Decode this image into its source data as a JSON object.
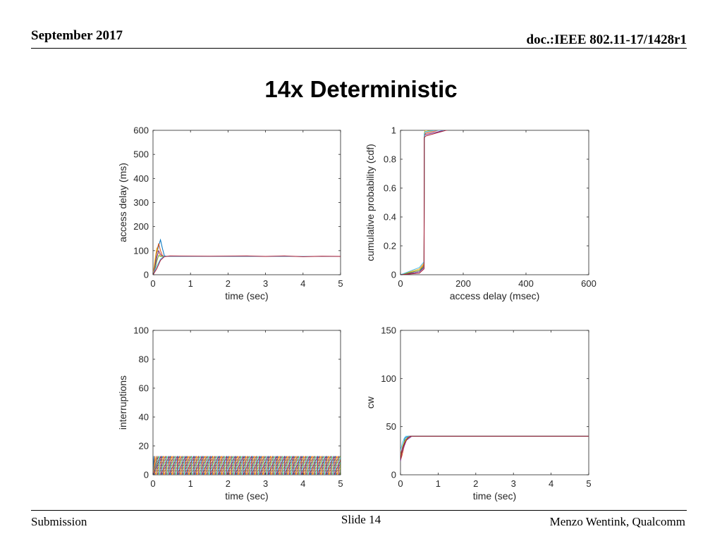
{
  "header": {
    "date": "September 2017",
    "doc": "doc.:IEEE 802.11-17/1428r1"
  },
  "slide_title": "14x Deterministic",
  "footer": {
    "left": "Submission",
    "center": "Slide 14",
    "right": "Menzo Wentink, Qualcomm"
  },
  "series_colors": [
    "#0072bd",
    "#d95319",
    "#edb120",
    "#7e2f8e",
    "#77ac30",
    "#4dbeee",
    "#a2142f"
  ],
  "chart_data": [
    {
      "id": "access-delay",
      "type": "line",
      "xlabel": "time (sec)",
      "ylabel": "access delay (ms)",
      "xlim": [
        0,
        5
      ],
      "ylim": [
        0,
        600
      ],
      "xticks": [
        0,
        1,
        2,
        3,
        4,
        5
      ],
      "yticks": [
        0,
        100,
        200,
        300,
        400,
        500,
        600
      ],
      "series": [
        {
          "x": [
            0,
            0.05,
            0.1,
            0.15,
            0.2,
            0.25,
            0.3,
            0.35,
            0.4,
            5
          ],
          "y": [
            0,
            40,
            90,
            120,
            145,
            110,
            80,
            76,
            76,
            76
          ]
        },
        {
          "x": [
            0,
            0.05,
            0.1,
            0.15,
            0.2,
            0.25,
            0.3,
            0.35,
            5
          ],
          "y": [
            0,
            50,
            95,
            130,
            100,
            80,
            76,
            76,
            76
          ]
        },
        {
          "x": [
            0,
            0.05,
            0.1,
            0.15,
            0.2,
            0.25,
            0.3,
            5
          ],
          "y": [
            0,
            60,
            110,
            90,
            78,
            76,
            76,
            76
          ]
        },
        {
          "x": [
            0,
            0.05,
            0.1,
            0.15,
            0.2,
            0.25,
            0.3,
            5
          ],
          "y": [
            0,
            30,
            70,
            100,
            85,
            77,
            76,
            76
          ]
        },
        {
          "x": [
            0,
            0.05,
            0.1,
            0.15,
            0.2,
            0.25,
            5
          ],
          "y": [
            0,
            20,
            55,
            80,
            76,
            76,
            76
          ]
        },
        {
          "x": [
            0,
            0.1,
            0.2,
            0.3,
            0.4,
            5
          ],
          "y": [
            0,
            35,
            65,
            78,
            76,
            76
          ]
        },
        {
          "x": [
            0,
            0.1,
            0.2,
            0.3,
            0.45,
            1.5,
            2.5,
            3.0,
            3.5,
            4.0,
            4.5,
            5
          ],
          "y": [
            0,
            25,
            60,
            75,
            78,
            77,
            78,
            76,
            78,
            75,
            77,
            76
          ]
        }
      ]
    },
    {
      "id": "cdf",
      "type": "line",
      "xlabel": "access delay (msec)",
      "ylabel": "cumulative probability (cdf)",
      "xlim": [
        0,
        600
      ],
      "ylim": [
        0,
        1
      ],
      "xticks": [
        0,
        200,
        400,
        600
      ],
      "yticks": [
        0,
        0.2,
        0.4,
        0.6,
        0.8,
        1
      ],
      "series": [
        {
          "x": [
            0,
            60,
            75,
            76,
            78,
            100,
            150
          ],
          "y": [
            0,
            0.02,
            0.06,
            0.97,
            0.99,
            1.0,
            1.0
          ]
        },
        {
          "x": [
            0,
            60,
            75,
            76,
            80,
            120,
            150
          ],
          "y": [
            0,
            0.03,
            0.07,
            0.96,
            0.98,
            1.0,
            1.0
          ]
        },
        {
          "x": [
            0,
            60,
            75,
            76,
            78,
            100,
            150
          ],
          "y": [
            0,
            0.04,
            0.08,
            0.98,
            1.0,
            1.0,
            1.0
          ]
        },
        {
          "x": [
            0,
            60,
            75,
            76,
            78,
            140,
            150
          ],
          "y": [
            0,
            0.02,
            0.05,
            0.96,
            0.97,
            1.0,
            1.0
          ]
        },
        {
          "x": [
            0,
            60,
            75,
            76,
            78,
            100,
            150
          ],
          "y": [
            0,
            0.03,
            0.06,
            0.97,
            0.99,
            1.0,
            1.0
          ]
        },
        {
          "x": [
            0,
            60,
            75,
            76,
            80,
            110,
            150
          ],
          "y": [
            0,
            0.05,
            0.09,
            0.98,
            0.99,
            1.0,
            1.0
          ]
        },
        {
          "x": [
            0,
            60,
            75,
            76,
            80,
            145,
            150
          ],
          "y": [
            0,
            0.01,
            0.04,
            0.95,
            0.96,
            1.0,
            1.0
          ]
        }
      ]
    },
    {
      "id": "interruptions",
      "type": "line",
      "xlabel": "time (sec)",
      "ylabel": "interruptions",
      "xlim": [
        0,
        5
      ],
      "ylim": [
        0,
        100
      ],
      "xticks": [
        0,
        1,
        2,
        3,
        4,
        5
      ],
      "yticks": [
        0,
        20,
        40,
        60,
        80,
        100
      ],
      "sawtooth": {
        "peak": 13,
        "period": 0.22,
        "start": 0.02
      }
    },
    {
      "id": "cw",
      "type": "line",
      "xlabel": "time (sec)",
      "ylabel": "cw",
      "xlim": [
        0,
        5
      ],
      "ylim": [
        0,
        150
      ],
      "xticks": [
        0,
        1,
        2,
        3,
        4,
        5
      ],
      "yticks": [
        0,
        50,
        100,
        150
      ],
      "series": [
        {
          "x": [
            0,
            0.03,
            0.08,
            0.12,
            0.2,
            5
          ],
          "y": [
            15,
            25,
            32,
            38,
            40,
            40
          ]
        },
        {
          "x": [
            0,
            0.04,
            0.1,
            0.15,
            0.22,
            5
          ],
          "y": [
            15,
            20,
            30,
            36,
            40,
            40
          ]
        },
        {
          "x": [
            0,
            0.05,
            0.1,
            0.18,
            0.25,
            5
          ],
          "y": [
            20,
            28,
            34,
            38,
            40,
            40
          ]
        },
        {
          "x": [
            0,
            0.03,
            0.09,
            0.16,
            0.3,
            5
          ],
          "y": [
            14,
            22,
            29,
            36,
            40,
            40
          ]
        },
        {
          "x": [
            0,
            0.06,
            0.12,
            0.2,
            0.28,
            5
          ],
          "y": [
            18,
            30,
            36,
            39,
            40,
            40
          ]
        },
        {
          "x": [
            0,
            0.05,
            0.1,
            0.14,
            5
          ],
          "y": [
            25,
            33,
            38,
            40,
            40
          ]
        },
        {
          "x": [
            0,
            0.04,
            0.11,
            0.19,
            0.26,
            5
          ],
          "y": [
            16,
            26,
            33,
            38,
            40,
            40
          ]
        }
      ]
    }
  ]
}
